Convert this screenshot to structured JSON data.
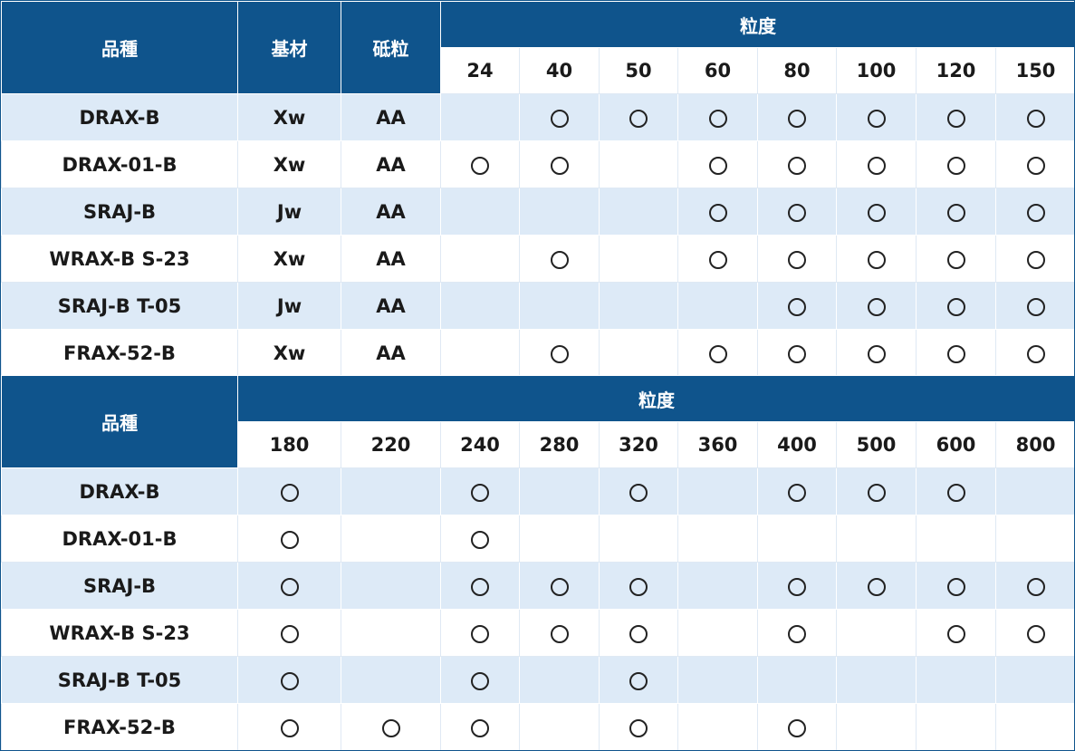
{
  "table1": {
    "headers": {
      "variety": "品種",
      "base": "基材",
      "abrasive": "砥粒",
      "grit": "粒度"
    },
    "grits": [
      "24",
      "40",
      "50",
      "60",
      "80",
      "100",
      "120",
      "150"
    ],
    "rows": [
      {
        "name": "DRAX-B",
        "base": "Xw",
        "abrasive": "AA",
        "marks": [
          false,
          true,
          true,
          true,
          true,
          true,
          true,
          true
        ]
      },
      {
        "name": "DRAX-01-B",
        "base": "Xw",
        "abrasive": "AA",
        "marks": [
          true,
          true,
          false,
          true,
          true,
          true,
          true,
          true
        ]
      },
      {
        "name": "SRAJ-B",
        "base": "Jw",
        "abrasive": "AA",
        "marks": [
          false,
          false,
          false,
          true,
          true,
          true,
          true,
          true
        ]
      },
      {
        "name": "WRAX-B S-23",
        "base": "Xw",
        "abrasive": "AA",
        "marks": [
          false,
          true,
          false,
          true,
          true,
          true,
          true,
          true
        ]
      },
      {
        "name": "SRAJ-B T-05",
        "base": "Jw",
        "abrasive": "AA",
        "marks": [
          false,
          false,
          false,
          false,
          true,
          true,
          true,
          true
        ]
      },
      {
        "name": "FRAX-52-B",
        "base": "Xw",
        "abrasive": "AA",
        "marks": [
          false,
          true,
          false,
          true,
          true,
          true,
          true,
          true
        ]
      }
    ]
  },
  "table2": {
    "headers": {
      "variety": "品種",
      "grit": "粒度"
    },
    "grits": [
      "180",
      "220",
      "240",
      "280",
      "320",
      "360",
      "400",
      "500",
      "600",
      "800"
    ],
    "rows": [
      {
        "name": "DRAX-B",
        "marks": [
          true,
          false,
          true,
          false,
          true,
          false,
          true,
          true,
          true,
          false
        ]
      },
      {
        "name": "DRAX-01-B",
        "marks": [
          true,
          false,
          true,
          false,
          false,
          false,
          false,
          false,
          false,
          false
        ]
      },
      {
        "name": "SRAJ-B",
        "marks": [
          true,
          false,
          true,
          true,
          true,
          false,
          true,
          true,
          true,
          true
        ]
      },
      {
        "name": "WRAX-B S-23",
        "marks": [
          true,
          false,
          true,
          true,
          true,
          false,
          true,
          false,
          true,
          true
        ]
      },
      {
        "name": "SRAJ-B T-05",
        "marks": [
          true,
          false,
          true,
          false,
          true,
          false,
          false,
          false,
          false,
          false
        ]
      },
      {
        "name": "FRAX-52-B",
        "marks": [
          true,
          true,
          true,
          false,
          true,
          false,
          true,
          false,
          false,
          false
        ]
      }
    ]
  },
  "colors": {
    "header": "#0f548c",
    "stripe": "#ddeaf7"
  }
}
